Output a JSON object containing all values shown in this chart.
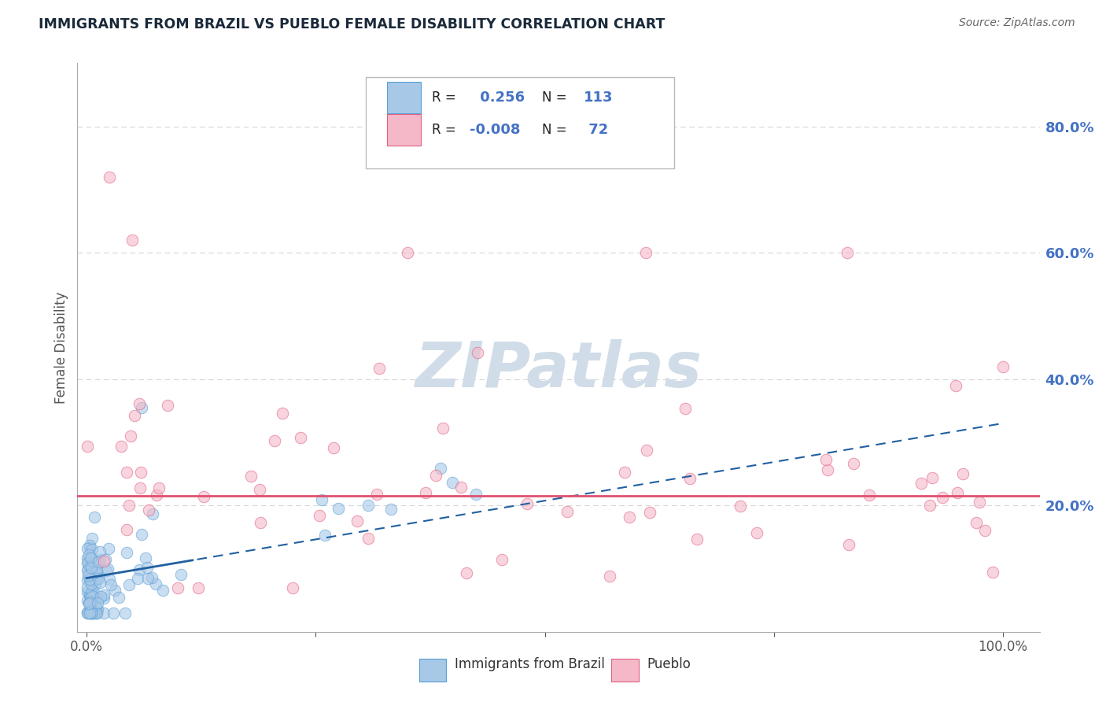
{
  "title": "IMMIGRANTS FROM BRAZIL VS PUEBLO FEMALE DISABILITY CORRELATION CHART",
  "source": "Source: ZipAtlas.com",
  "ylabel": "Female Disability",
  "r1": 0.256,
  "n1": 113,
  "r2": -0.008,
  "n2": 72,
  "legend_label1": "Immigrants from Brazil",
  "legend_label2": "Pueblo",
  "color_blue": "#a8c8e8",
  "color_blue_edge": "#5a9fd4",
  "color_blue_line": "#2060a0",
  "color_pink": "#f4b8c8",
  "color_pink_edge": "#e06080",
  "color_pink_line": "#e05070",
  "watermark_color": "#d0dce8",
  "title_color": "#1a2a3a",
  "source_color": "#666666",
  "axis_label_color": "#555555",
  "right_tick_color": "#4472c4",
  "grid_color": "#cccccc",
  "ytick_vals": [
    0.2,
    0.4,
    0.6,
    0.8
  ],
  "ytick_labels": [
    "20.0%",
    "40.0%",
    "60.0%",
    "80.0%"
  ],
  "ylim": [
    0.0,
    0.9
  ],
  "xlim": [
    0.0,
    1.0
  ]
}
